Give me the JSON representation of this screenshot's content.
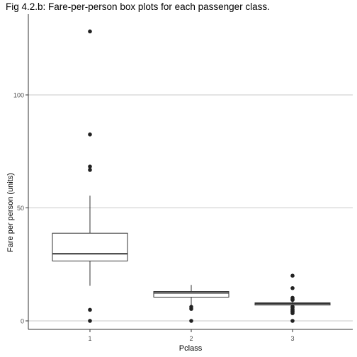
{
  "chart_data": {
    "type": "box",
    "title": "Fig 4.2.b: Fare-per-person box plots for each passenger class.",
    "xlabel": "Pclass",
    "ylabel": "Fare per person (units)",
    "categories": [
      "1",
      "2",
      "3"
    ],
    "ylim": [
      -4,
      134
    ],
    "yticks": [
      0,
      50,
      100
    ],
    "grid": "horizontal major",
    "boxes": [
      {
        "category": "1",
        "whisker_low": 15.5,
        "q1": 26.5,
        "median": 29.7,
        "q3": 38.8,
        "whisker_high": 55.4,
        "outliers": [
          128.1,
          82.5,
          68.3,
          66.8,
          4.9,
          0.0
        ]
      },
      {
        "category": "2",
        "whisker_low": 6.9,
        "q1": 10.5,
        "median": 12.4,
        "q3": 13.0,
        "whisker_high": 15.9,
        "outliers": [
          6.2,
          5.3,
          0.0
        ]
      },
      {
        "category": "3",
        "whisker_low": 6.6,
        "q1": 7.0,
        "median": 7.6,
        "q3": 8.0,
        "whisker_high": 9.0,
        "outliers": [
          20.0,
          14.5,
          10.2,
          9.6,
          9.3,
          6.3,
          5.9,
          5.2,
          4.8,
          4.3,
          4.0,
          3.4,
          0.0
        ]
      }
    ]
  }
}
